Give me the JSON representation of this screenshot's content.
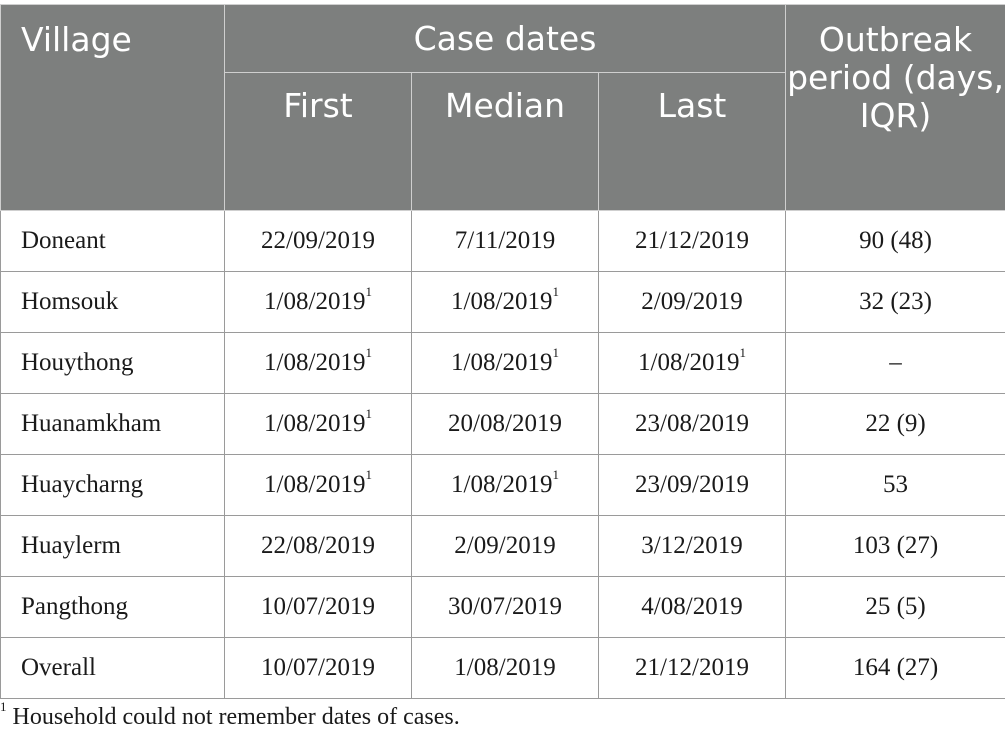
{
  "headers": {
    "village": "Village",
    "case_dates": "Case dates",
    "first": "First",
    "median": "Median",
    "last": "Last",
    "outbreak_period": "Outbreak period (days, IQR)"
  },
  "rows": [
    {
      "village": "Doneant",
      "first": "22/09/2019",
      "first_note": "",
      "median": "7/11/2019",
      "median_note": "",
      "last": "21/12/2019",
      "last_note": "",
      "period": "90 (48)"
    },
    {
      "village": "Homsouk",
      "first": "1/08/2019",
      "first_note": "1",
      "median": "1/08/2019",
      "median_note": "1",
      "last": "2/09/2019",
      "last_note": "",
      "period": "32 (23)"
    },
    {
      "village": "Houythong",
      "first": "1/08/2019",
      "first_note": "1",
      "median": "1/08/2019",
      "median_note": "1",
      "last": "1/08/2019",
      "last_note": "1",
      "period": "–"
    },
    {
      "village": "Huanamkham",
      "first": "1/08/2019",
      "first_note": "1",
      "median": "20/08/2019",
      "median_note": "",
      "last": "23/08/2019",
      "last_note": "",
      "period": "22 (9)"
    },
    {
      "village": "Huaycharng",
      "first": "1/08/2019",
      "first_note": "1",
      "median": "1/08/2019",
      "median_note": "1",
      "last": "23/09/2019",
      "last_note": "",
      "period": "53"
    },
    {
      "village": "Huaylerm",
      "first": "22/08/2019",
      "first_note": "",
      "median": "2/09/2019",
      "median_note": "",
      "last": "3/12/2019",
      "last_note": "",
      "period": "103 (27)"
    },
    {
      "village": "Pangthong",
      "first": "10/07/2019",
      "first_note": "",
      "median": "30/07/2019",
      "median_note": "",
      "last": "4/08/2019",
      "last_note": "",
      "period": "25 (5)"
    },
    {
      "village": "Overall",
      "first": "10/07/2019",
      "first_note": "",
      "median": "1/08/2019",
      "median_note": "",
      "last": "21/12/2019",
      "last_note": "",
      "period": "164 (27)"
    }
  ],
  "footnote": {
    "marker": "1",
    "text": " Household could not remember dates of cases."
  },
  "colors": {
    "header_bg": "#7d7f7e",
    "header_text": "#ffffff",
    "cell_border": "#9a9a9a"
  }
}
